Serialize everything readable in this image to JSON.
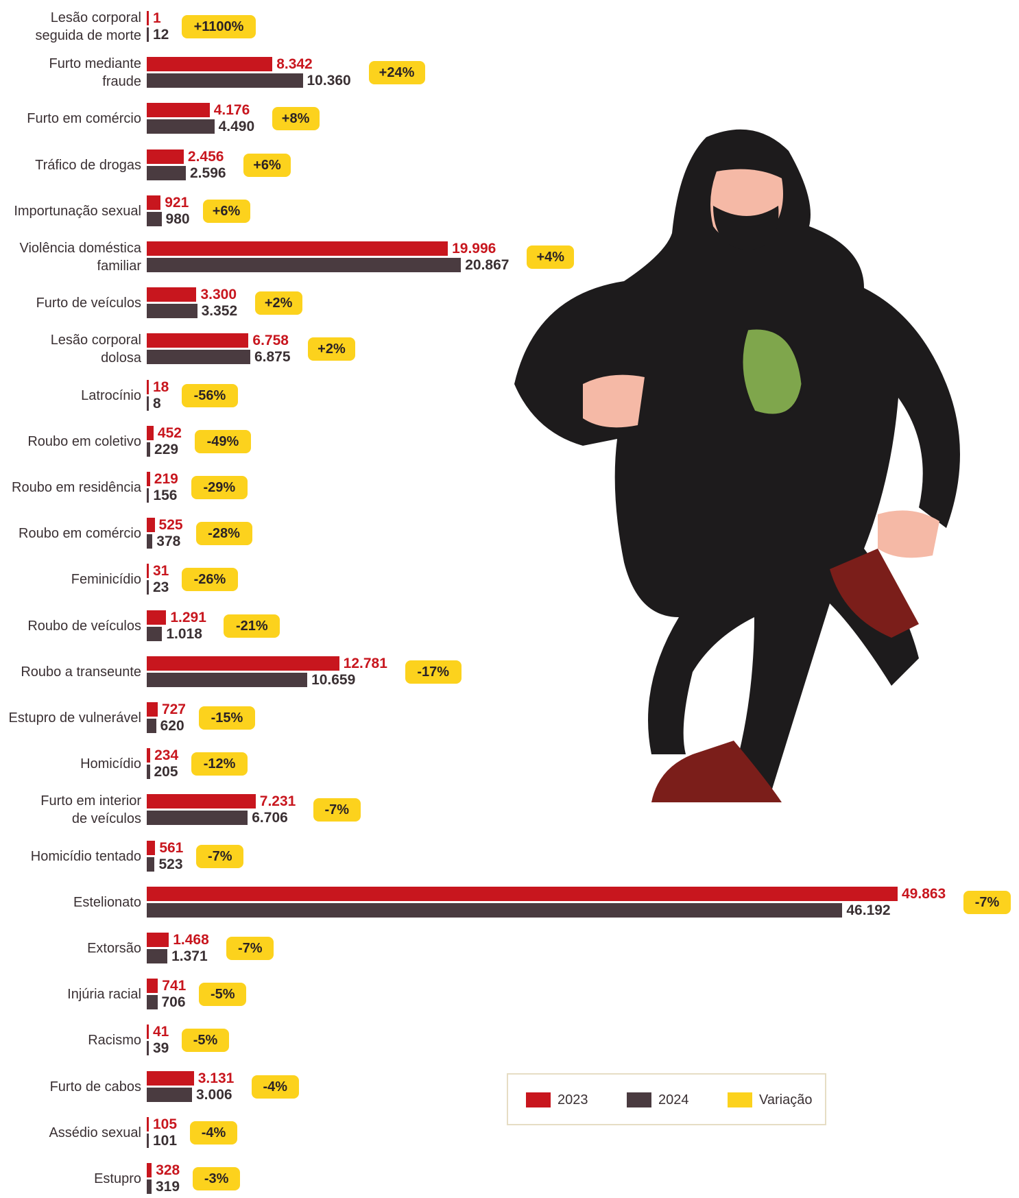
{
  "chart_data": {
    "type": "bar",
    "orientation": "horizontal",
    "categories": [
      "Lesão corporal\nseguida de morte",
      "Furto mediante\nfraude",
      "Furto em comércio",
      "Tráfico de drogas",
      "Importunação sexual",
      "Violência doméstica\nfamiliar",
      "Furto de veículos",
      "Lesão corporal\ndolosa",
      "Latrocínio",
      "Roubo em coletivo",
      "Roubo em residência",
      "Roubo em comércio",
      "Feminicídio",
      "Roubo de veículos",
      "Roubo a transeunte",
      "Estupro de vulnerável",
      "Homicídio",
      "Furto em interior\nde veículos",
      "Homicídio tentado",
      "Estelionato",
      "Extorsão",
      "Injúria racial",
      "Racismo",
      "Furto de cabos",
      "Assédio sexual",
      "Estupro"
    ],
    "series": [
      {
        "name": "2023",
        "color": "#c8161e",
        "values": [
          1,
          8342,
          4176,
          2456,
          921,
          19996,
          3300,
          6758,
          18,
          452,
          219,
          525,
          31,
          1291,
          12781,
          727,
          234,
          7231,
          561,
          49863,
          1468,
          741,
          41,
          3131,
          105,
          328
        ],
        "value_labels": [
          "1",
          "8.342",
          "4.176",
          "2.456",
          "921",
          "19.996",
          "3.300",
          "6.758",
          "18",
          "452",
          "219",
          "525",
          "31",
          "1.291",
          "12.781",
          "727",
          "234",
          "7.231",
          "561",
          "49.863",
          "1.468",
          "741",
          "41",
          "3.131",
          "105",
          "328"
        ]
      },
      {
        "name": "2024",
        "color": "#4a3b40",
        "values": [
          12,
          10360,
          4490,
          2596,
          980,
          20867,
          3352,
          6875,
          8,
          229,
          156,
          378,
          23,
          1018,
          10659,
          620,
          205,
          6706,
          523,
          46192,
          1371,
          706,
          39,
          3006,
          101,
          319
        ],
        "value_labels": [
          "12",
          "10.360",
          "4.490",
          "2.596",
          "980",
          "20.867",
          "3.352",
          "6.875",
          "8",
          "229",
          "156",
          "378",
          "23",
          "1.018",
          "10.659",
          "620",
          "205",
          "6.706",
          "523",
          "46.192",
          "1.371",
          "706",
          "39",
          "3.006",
          "101",
          "319"
        ]
      }
    ],
    "variation": {
      "name": "Variação",
      "color": "#fcd21d",
      "values": [
        1100,
        24,
        8,
        6,
        6,
        4,
        2,
        2,
        -56,
        -49,
        -29,
        -28,
        -26,
        -21,
        -17,
        -15,
        -12,
        -7,
        -7,
        -7,
        -7,
        -5,
        -5,
        -4,
        -4,
        -3
      ],
      "value_labels": [
        "+1100%",
        "+24%",
        "+8%",
        "+6%",
        "+6%",
        "+4%",
        "+2%",
        "+2%",
        "-56%",
        "-49%",
        "-29%",
        "-28%",
        "-26%",
        "-21%",
        "-17%",
        "-15%",
        "-12%",
        "-7%",
        "-7%",
        "-7%",
        "-7%",
        "-5%",
        "-5%",
        "-4%",
        "-4%",
        "-3%"
      ]
    }
  }
}
